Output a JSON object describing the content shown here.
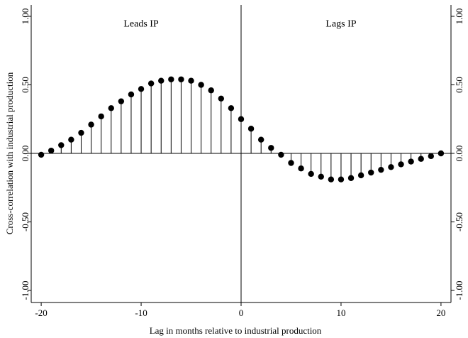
{
  "chart_data": {
    "type": "stem",
    "xlabel": "Lag in months relative to industrial production",
    "ylabel": "Cross-correlation with industrial production",
    "xlim": [
      -21,
      21
    ],
    "ylim": [
      -1.0,
      1.0
    ],
    "xticks": [
      -20,
      -10,
      0,
      10,
      20
    ],
    "xtick_labels": [
      "-20",
      "-10",
      "0",
      "10",
      "20"
    ],
    "yticks": [
      -1.0,
      -0.5,
      0.0,
      0.5,
      1.0
    ],
    "ytick_labels": [
      "-1.00",
      "-0.50",
      "0.00",
      "0.50",
      "1.00"
    ],
    "y_axis_sides": "left and right",
    "grid": false,
    "annotations": [
      {
        "text": "Leads IP",
        "x": -10,
        "y": 0.95
      },
      {
        "text": "Lags IP",
        "x": 10,
        "y": 0.95
      }
    ],
    "reference_lines": {
      "horizontal_at": 0,
      "vertical_at": 0
    },
    "series": [
      {
        "x": [
          -20,
          -19,
          -18,
          -17,
          -16,
          -15,
          -14,
          -13,
          -12,
          -11,
          -10,
          -9,
          -8,
          -7,
          -6,
          -5,
          -4,
          -3,
          -2,
          -1,
          0,
          1,
          2,
          3,
          4,
          5,
          6,
          7,
          8,
          9,
          10,
          11,
          12,
          13,
          14,
          15,
          16,
          17,
          18,
          19,
          20
        ],
        "y": [
          -0.01,
          0.02,
          0.06,
          0.1,
          0.15,
          0.21,
          0.27,
          0.33,
          0.38,
          0.43,
          0.47,
          0.51,
          0.53,
          0.54,
          0.54,
          0.53,
          0.5,
          0.46,
          0.4,
          0.33,
          0.25,
          0.18,
          0.1,
          0.04,
          -0.01,
          -0.07,
          -0.11,
          -0.15,
          -0.17,
          -0.19,
          -0.19,
          -0.18,
          -0.16,
          -0.14,
          -0.12,
          -0.1,
          -0.08,
          -0.06,
          -0.04,
          -0.02,
          0.0
        ]
      }
    ]
  }
}
